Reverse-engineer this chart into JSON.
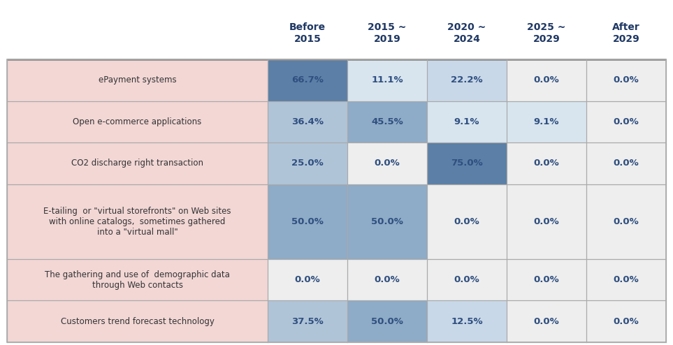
{
  "col_headers": [
    "Before\n2015",
    "2015 ~\n2019",
    "2020 ~\n2024",
    "2025 ~\n2029",
    "After\n2029"
  ],
  "row_labels": [
    "ePayment systems",
    "Open e-commerce applications",
    "CO2 discharge right transaction",
    "E-tailing  or \"virtual storefronts\" on Web sites\nwith online catalogs,  sometimes gathered\ninto a \"virtual mall\"",
    "The gathering and use of  demographic data\nthrough Web contacts",
    "Customers trend forecast technology"
  ],
  "values": [
    [
      66.7,
      11.1,
      22.2,
      0.0,
      0.0
    ],
    [
      36.4,
      45.5,
      9.1,
      9.1,
      0.0
    ],
    [
      25.0,
      0.0,
      75.0,
      0.0,
      0.0
    ],
    [
      50.0,
      50.0,
      0.0,
      0.0,
      0.0
    ],
    [
      0.0,
      0.0,
      0.0,
      0.0,
      0.0
    ],
    [
      37.5,
      50.0,
      12.5,
      0.0,
      0.0
    ]
  ],
  "value_labels": [
    [
      "66.7%",
      "11.1%",
      "22.2%",
      "0.0%",
      "0.0%"
    ],
    [
      "36.4%",
      "45.5%",
      "9.1%",
      "9.1%",
      "0.0%"
    ],
    [
      "25.0%",
      "0.0%",
      "75.0%",
      "0.0%",
      "0.0%"
    ],
    [
      "50.0%",
      "50.0%",
      "0.0%",
      "0.0%",
      "0.0%"
    ],
    [
      "0.0%",
      "0.0%",
      "0.0%",
      "0.0%",
      "0.0%"
    ],
    [
      "37.5%",
      "50.0%",
      "12.5%",
      "0.0%",
      "0.0%"
    ]
  ],
  "row_label_bg": "#f2d7d5",
  "header_text_color": "#1f3864",
  "cell_text_color": "#2f4f7f",
  "zero_cell_bg": "#eeeeee",
  "fig_bg": "#ffffff",
  "blue_dark": "#5b7fa6",
  "blue_medium_dark": "#7a9dbf",
  "blue_mid": "#8eabc7",
  "blue_light": "#b0c4d8",
  "blue_lighter": "#c8d8e8",
  "blue_very_light": "#d8e5ef",
  "line_color": "#aaaaaa",
  "header_line_color": "#888888"
}
